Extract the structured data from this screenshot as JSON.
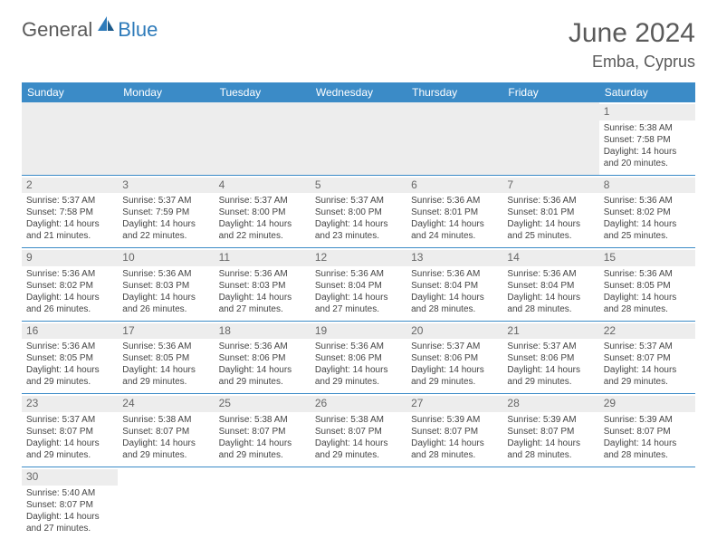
{
  "logo": {
    "part1": "General",
    "part2": "Blue"
  },
  "title": "June 2024",
  "location": "Emba, Cyprus",
  "colors": {
    "header_bg": "#3b8bc7",
    "header_text": "#ffffff",
    "daynum_bg": "#ededed",
    "border": "#3b8bc7",
    "text": "#444444"
  },
  "days_of_week": [
    "Sunday",
    "Monday",
    "Tuesday",
    "Wednesday",
    "Thursday",
    "Friday",
    "Saturday"
  ],
  "weeks": [
    [
      null,
      null,
      null,
      null,
      null,
      null,
      {
        "n": "1",
        "sunrise": "Sunrise: 5:38 AM",
        "sunset": "Sunset: 7:58 PM",
        "daylight": "Daylight: 14 hours and 20 minutes."
      }
    ],
    [
      {
        "n": "2",
        "sunrise": "Sunrise: 5:37 AM",
        "sunset": "Sunset: 7:58 PM",
        "daylight": "Daylight: 14 hours and 21 minutes."
      },
      {
        "n": "3",
        "sunrise": "Sunrise: 5:37 AM",
        "sunset": "Sunset: 7:59 PM",
        "daylight": "Daylight: 14 hours and 22 minutes."
      },
      {
        "n": "4",
        "sunrise": "Sunrise: 5:37 AM",
        "sunset": "Sunset: 8:00 PM",
        "daylight": "Daylight: 14 hours and 22 minutes."
      },
      {
        "n": "5",
        "sunrise": "Sunrise: 5:37 AM",
        "sunset": "Sunset: 8:00 PM",
        "daylight": "Daylight: 14 hours and 23 minutes."
      },
      {
        "n": "6",
        "sunrise": "Sunrise: 5:36 AM",
        "sunset": "Sunset: 8:01 PM",
        "daylight": "Daylight: 14 hours and 24 minutes."
      },
      {
        "n": "7",
        "sunrise": "Sunrise: 5:36 AM",
        "sunset": "Sunset: 8:01 PM",
        "daylight": "Daylight: 14 hours and 25 minutes."
      },
      {
        "n": "8",
        "sunrise": "Sunrise: 5:36 AM",
        "sunset": "Sunset: 8:02 PM",
        "daylight": "Daylight: 14 hours and 25 minutes."
      }
    ],
    [
      {
        "n": "9",
        "sunrise": "Sunrise: 5:36 AM",
        "sunset": "Sunset: 8:02 PM",
        "daylight": "Daylight: 14 hours and 26 minutes."
      },
      {
        "n": "10",
        "sunrise": "Sunrise: 5:36 AM",
        "sunset": "Sunset: 8:03 PM",
        "daylight": "Daylight: 14 hours and 26 minutes."
      },
      {
        "n": "11",
        "sunrise": "Sunrise: 5:36 AM",
        "sunset": "Sunset: 8:03 PM",
        "daylight": "Daylight: 14 hours and 27 minutes."
      },
      {
        "n": "12",
        "sunrise": "Sunrise: 5:36 AM",
        "sunset": "Sunset: 8:04 PM",
        "daylight": "Daylight: 14 hours and 27 minutes."
      },
      {
        "n": "13",
        "sunrise": "Sunrise: 5:36 AM",
        "sunset": "Sunset: 8:04 PM",
        "daylight": "Daylight: 14 hours and 28 minutes."
      },
      {
        "n": "14",
        "sunrise": "Sunrise: 5:36 AM",
        "sunset": "Sunset: 8:04 PM",
        "daylight": "Daylight: 14 hours and 28 minutes."
      },
      {
        "n": "15",
        "sunrise": "Sunrise: 5:36 AM",
        "sunset": "Sunset: 8:05 PM",
        "daylight": "Daylight: 14 hours and 28 minutes."
      }
    ],
    [
      {
        "n": "16",
        "sunrise": "Sunrise: 5:36 AM",
        "sunset": "Sunset: 8:05 PM",
        "daylight": "Daylight: 14 hours and 29 minutes."
      },
      {
        "n": "17",
        "sunrise": "Sunrise: 5:36 AM",
        "sunset": "Sunset: 8:05 PM",
        "daylight": "Daylight: 14 hours and 29 minutes."
      },
      {
        "n": "18",
        "sunrise": "Sunrise: 5:36 AM",
        "sunset": "Sunset: 8:06 PM",
        "daylight": "Daylight: 14 hours and 29 minutes."
      },
      {
        "n": "19",
        "sunrise": "Sunrise: 5:36 AM",
        "sunset": "Sunset: 8:06 PM",
        "daylight": "Daylight: 14 hours and 29 minutes."
      },
      {
        "n": "20",
        "sunrise": "Sunrise: 5:37 AM",
        "sunset": "Sunset: 8:06 PM",
        "daylight": "Daylight: 14 hours and 29 minutes."
      },
      {
        "n": "21",
        "sunrise": "Sunrise: 5:37 AM",
        "sunset": "Sunset: 8:06 PM",
        "daylight": "Daylight: 14 hours and 29 minutes."
      },
      {
        "n": "22",
        "sunrise": "Sunrise: 5:37 AM",
        "sunset": "Sunset: 8:07 PM",
        "daylight": "Daylight: 14 hours and 29 minutes."
      }
    ],
    [
      {
        "n": "23",
        "sunrise": "Sunrise: 5:37 AM",
        "sunset": "Sunset: 8:07 PM",
        "daylight": "Daylight: 14 hours and 29 minutes."
      },
      {
        "n": "24",
        "sunrise": "Sunrise: 5:38 AM",
        "sunset": "Sunset: 8:07 PM",
        "daylight": "Daylight: 14 hours and 29 minutes."
      },
      {
        "n": "25",
        "sunrise": "Sunrise: 5:38 AM",
        "sunset": "Sunset: 8:07 PM",
        "daylight": "Daylight: 14 hours and 29 minutes."
      },
      {
        "n": "26",
        "sunrise": "Sunrise: 5:38 AM",
        "sunset": "Sunset: 8:07 PM",
        "daylight": "Daylight: 14 hours and 29 minutes."
      },
      {
        "n": "27",
        "sunrise": "Sunrise: 5:39 AM",
        "sunset": "Sunset: 8:07 PM",
        "daylight": "Daylight: 14 hours and 28 minutes."
      },
      {
        "n": "28",
        "sunrise": "Sunrise: 5:39 AM",
        "sunset": "Sunset: 8:07 PM",
        "daylight": "Daylight: 14 hours and 28 minutes."
      },
      {
        "n": "29",
        "sunrise": "Sunrise: 5:39 AM",
        "sunset": "Sunset: 8:07 PM",
        "daylight": "Daylight: 14 hours and 28 minutes."
      }
    ],
    [
      {
        "n": "30",
        "sunrise": "Sunrise: 5:40 AM",
        "sunset": "Sunset: 8:07 PM",
        "daylight": "Daylight: 14 hours and 27 minutes."
      },
      null,
      null,
      null,
      null,
      null,
      null
    ]
  ]
}
